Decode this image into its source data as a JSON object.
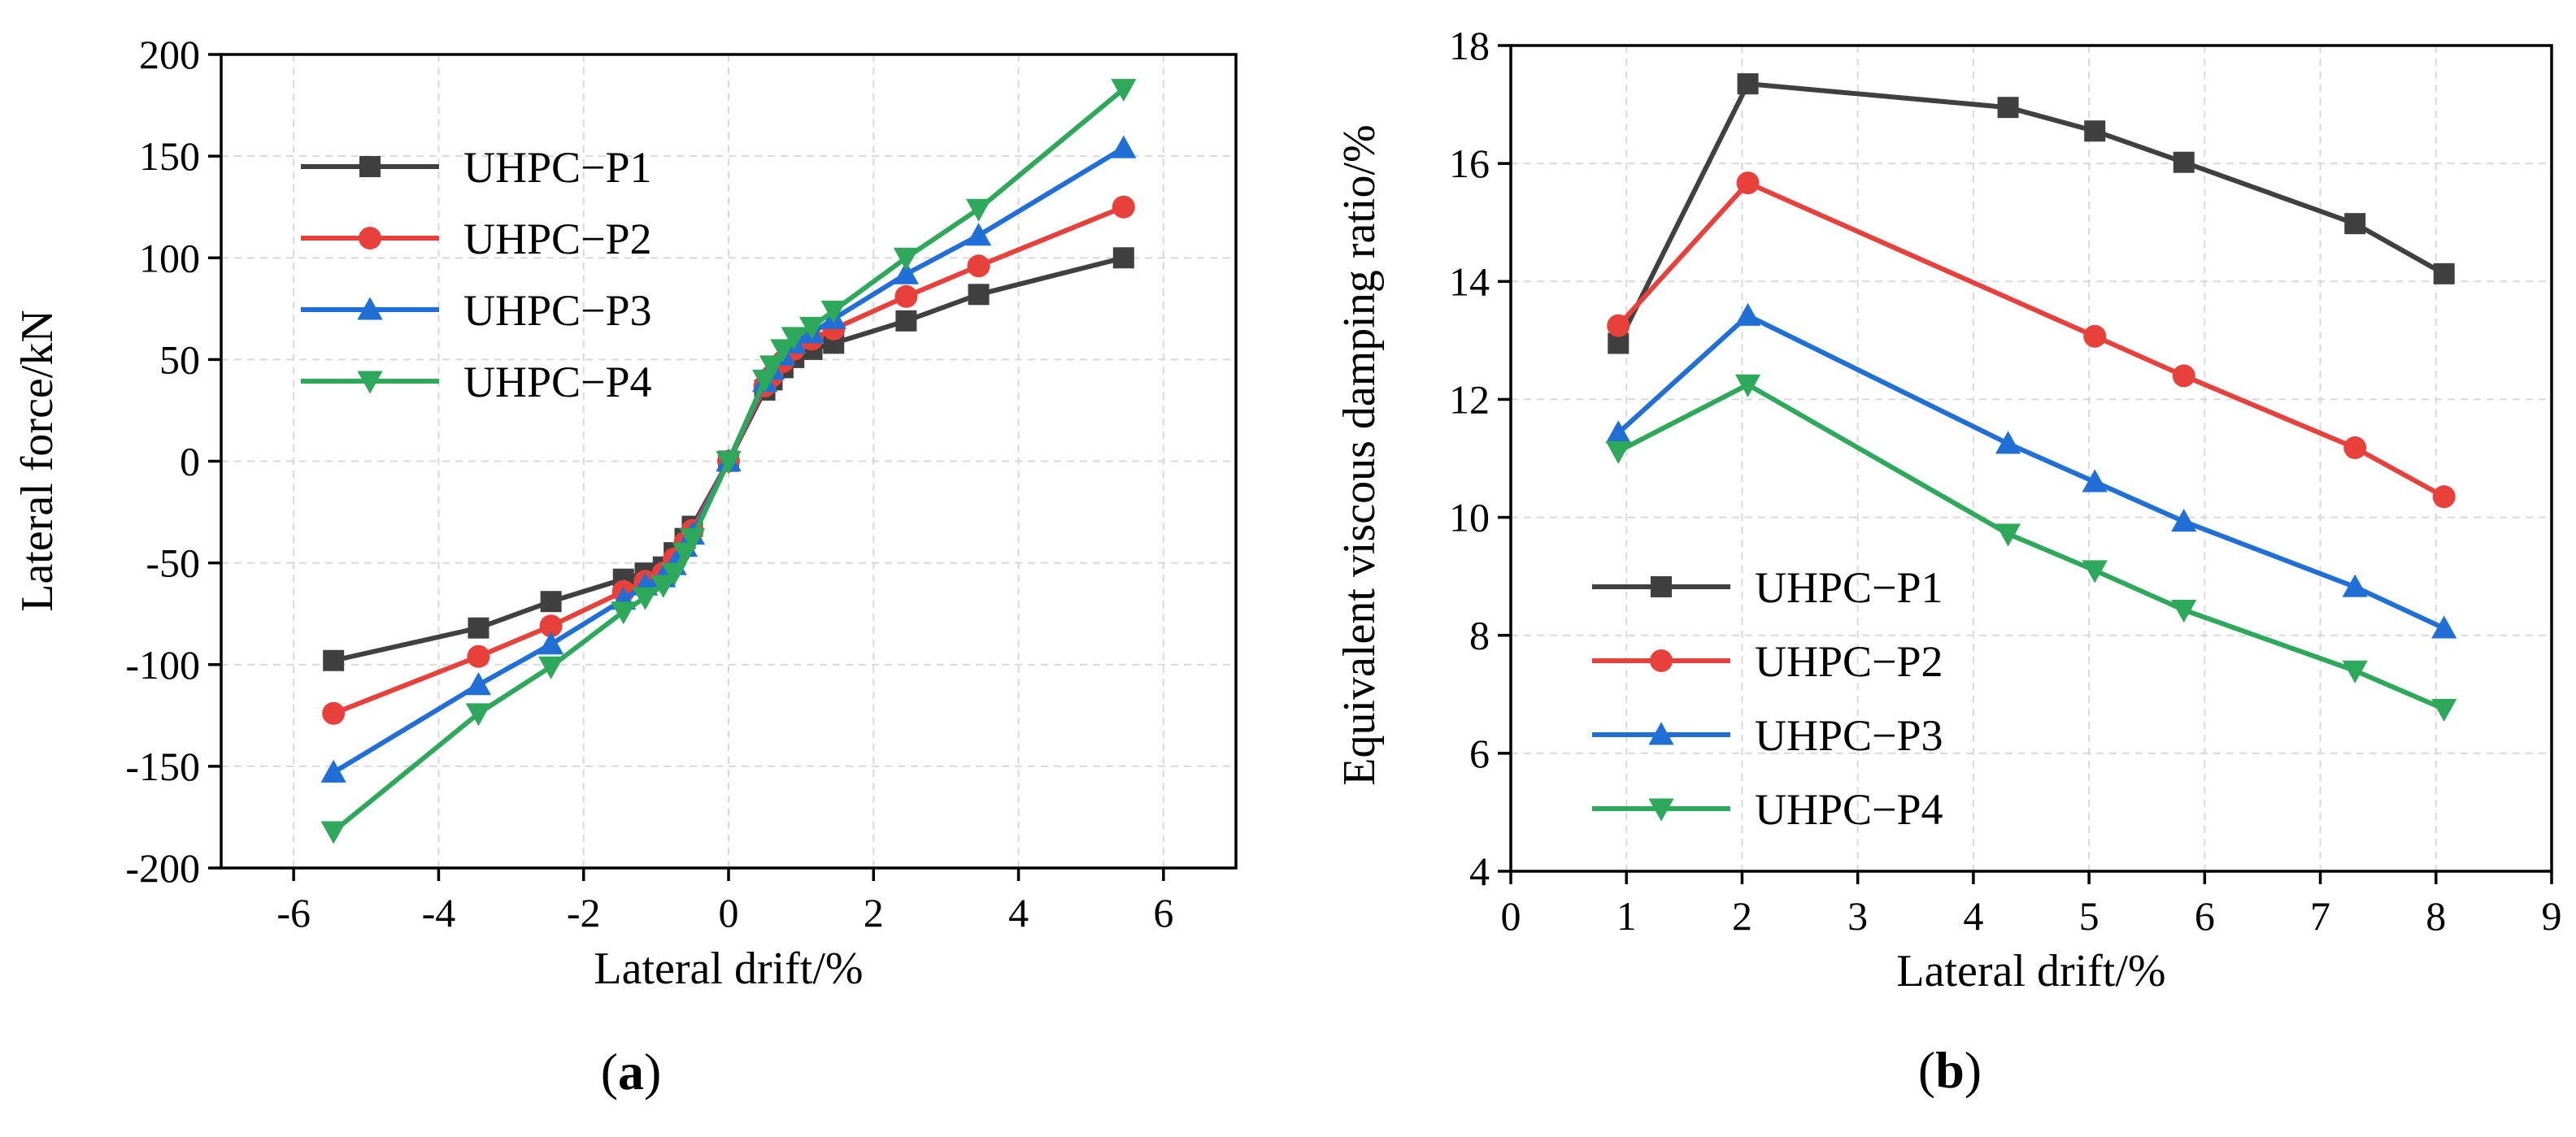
{
  "chart_data": [
    {
      "type": "line",
      "panel_label": "a",
      "title": "",
      "xlabel": "Lateral drift/%",
      "ylabel": "Lateral force/kN",
      "xlim": [
        -7,
        7
      ],
      "ylim": [
        -200,
        200
      ],
      "xticks": [
        -6,
        -4,
        -2,
        0,
        2,
        4,
        6
      ],
      "yticks": [
        -200,
        -150,
        -100,
        -50,
        0,
        50,
        100,
        150,
        200
      ],
      "grid": true,
      "legend_position": "top-left",
      "series": [
        {
          "name": "UHPC−P1",
          "color": "#404040",
          "marker": "square",
          "x": [
            -5.45,
            -3.45,
            -2.45,
            -1.45,
            -1.15,
            -0.9,
            -0.75,
            -0.6,
            -0.5,
            0,
            0.5,
            0.6,
            0.75,
            0.9,
            1.15,
            1.45,
            2.45,
            3.45,
            5.45
          ],
          "y": [
            -98,
            -82,
            -69,
            -58,
            -55,
            -52,
            -45,
            -38,
            -32,
            0,
            35,
            40,
            46,
            51,
            55,
            58,
            69,
            82,
            100
          ]
        },
        {
          "name": "UHPC−P2",
          "color": "#e8413c",
          "marker": "circle",
          "x": [
            -5.45,
            -3.45,
            -2.45,
            -1.45,
            -1.15,
            -0.9,
            -0.75,
            -0.6,
            -0.5,
            0,
            0.5,
            0.6,
            0.75,
            0.9,
            1.15,
            1.45,
            2.45,
            3.45,
            5.45
          ],
          "y": [
            -124,
            -96,
            -81,
            -64,
            -59,
            -55,
            -48,
            -40,
            -34,
            0,
            37,
            42,
            49,
            55,
            60,
            65,
            81,
            96,
            125
          ]
        },
        {
          "name": "UHPC−P3",
          "color": "#1f6fd6",
          "marker": "triangle-up",
          "x": [
            -5.45,
            -3.45,
            -2.45,
            -1.45,
            -1.15,
            -0.9,
            -0.75,
            -0.6,
            -0.5,
            0,
            0.5,
            0.6,
            0.75,
            0.9,
            1.15,
            1.45,
            2.45,
            3.45,
            5.45
          ],
          "y": [
            -153,
            -110,
            -90,
            -68,
            -61,
            -57,
            -51,
            -42,
            -36,
            0,
            39,
            45,
            52,
            58,
            63,
            70,
            92,
            111,
            154
          ]
        },
        {
          "name": "UHPC−P4",
          "color": "#2ea85a",
          "marker": "triangle-down",
          "x": [
            -5.45,
            -3.45,
            -2.45,
            -1.45,
            -1.15,
            -0.9,
            -0.75,
            -0.6,
            -0.5,
            0,
            0.5,
            0.6,
            0.75,
            0.9,
            1.15,
            1.45,
            2.45,
            3.45,
            5.45
          ],
          "y": [
            -182,
            -124,
            -101,
            -74,
            -67,
            -61,
            -55,
            -45,
            -38,
            0,
            40,
            47,
            55,
            61,
            66,
            74,
            100,
            124,
            183
          ]
        }
      ]
    },
    {
      "type": "line",
      "panel_label": "b",
      "title": "",
      "xlabel": "Lateral drift/%",
      "ylabel": "Equivalent viscous damping ratio/%",
      "xlim": [
        0,
        9
      ],
      "ylim": [
        4,
        18
      ],
      "xticks": [
        0,
        1,
        2,
        3,
        4,
        5,
        6,
        7,
        8,
        9
      ],
      "yticks": [
        4,
        6,
        8,
        10,
        12,
        14,
        16,
        18
      ],
      "grid": true,
      "legend_position": "bottom-left",
      "series": [
        {
          "name": "UHPC−P1",
          "color": "#404040",
          "marker": "square",
          "x": [
            0.93,
            2.05,
            4.3,
            5.05,
            5.82,
            7.3,
            8.07
          ],
          "y": [
            12.95,
            17.35,
            16.95,
            16.55,
            16.02,
            14.98,
            14.13
          ]
        },
        {
          "name": "UHPC−P2",
          "color": "#e8413c",
          "marker": "circle",
          "x": [
            0.93,
            2.05,
            5.05,
            5.82,
            7.3,
            8.07
          ],
          "y": [
            13.25,
            15.67,
            13.07,
            12.4,
            11.18,
            10.35
          ]
        },
        {
          "name": "UHPC−P3",
          "color": "#1f6fd6",
          "marker": "triangle-up",
          "x": [
            0.93,
            2.05,
            4.3,
            5.05,
            5.82,
            7.3,
            8.07
          ],
          "y": [
            11.43,
            13.42,
            11.25,
            10.6,
            9.93,
            8.82,
            8.12
          ]
        },
        {
          "name": "UHPC−P4",
          "color": "#2ea85a",
          "marker": "triangle-down",
          "x": [
            0.93,
            2.05,
            4.3,
            5.05,
            5.82,
            7.3,
            8.07
          ],
          "y": [
            11.12,
            12.25,
            9.72,
            9.1,
            8.43,
            7.4,
            6.75
          ]
        }
      ]
    }
  ]
}
